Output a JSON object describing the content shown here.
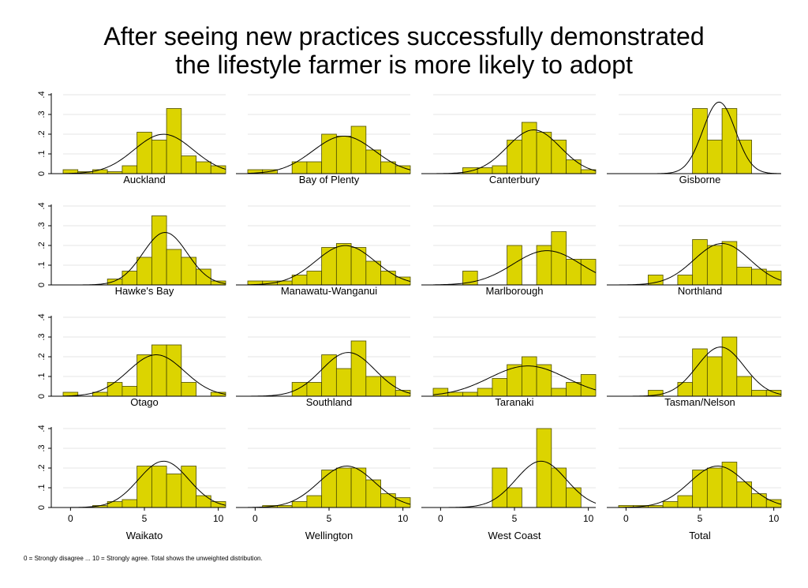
{
  "title_lines": [
    "After seeing new practices successfully demonstrated",
    "the lifestyle farmer is more likely to adopt"
  ],
  "note": "0 = Strongly disagree ... 10 = Strongly agree. Total shows the unweighted distribution.",
  "colors": {
    "bar_fill": "#dcd400",
    "bar_stroke": "#4a4a00",
    "axis": "#000000",
    "grid": "#e6e6e6",
    "curve": "#000000"
  },
  "chart_data": {
    "type": "bar",
    "overlay": "normal density curve",
    "grid": true,
    "xlim": [
      -0.5,
      10.5
    ],
    "ylim": [
      0,
      0.4
    ],
    "x_ticks": [
      0,
      5,
      10
    ],
    "x_tick_labels": [
      "0",
      "5",
      "10"
    ],
    "y_ticks": [
      0,
      0.1,
      0.2,
      0.3,
      0.4
    ],
    "y_tick_labels": [
      "0",
      ".1",
      ".2",
      ".3",
      ".4"
    ],
    "categories": [
      0,
      1,
      2,
      3,
      4,
      5,
      6,
      7,
      8,
      9,
      10
    ],
    "panels": [
      {
        "name": "Auckland",
        "values": [
          0.02,
          0.01,
          0.02,
          0.01,
          0.04,
          0.21,
          0.17,
          0.33,
          0.09,
          0.06,
          0.04
        ],
        "mean": 6.3,
        "sd": 2.0
      },
      {
        "name": "Bay of Plenty",
        "values": [
          0.02,
          0.02,
          0.0,
          0.06,
          0.06,
          0.2,
          0.19,
          0.24,
          0.12,
          0.06,
          0.04
        ],
        "mean": 6.0,
        "sd": 2.1
      },
      {
        "name": "Canterbury",
        "values": [
          0.0,
          0.0,
          0.03,
          0.03,
          0.04,
          0.17,
          0.26,
          0.21,
          0.17,
          0.07,
          0.02
        ],
        "mean": 6.3,
        "sd": 1.8
      },
      {
        "name": "Gisborne",
        "values": [
          0.0,
          0.0,
          0.0,
          0.0,
          0.0,
          0.33,
          0.17,
          0.33,
          0.17,
          0.0,
          0.0
        ],
        "mean": 6.3,
        "sd": 1.1
      },
      {
        "name": "Hawke's Bay",
        "values": [
          0.0,
          0.0,
          0.0,
          0.03,
          0.07,
          0.14,
          0.35,
          0.18,
          0.14,
          0.08,
          0.02
        ],
        "mean": 6.4,
        "sd": 1.5
      },
      {
        "name": "Manawatu-Wanganui",
        "values": [
          0.02,
          0.02,
          0.02,
          0.05,
          0.07,
          0.19,
          0.21,
          0.19,
          0.12,
          0.07,
          0.04
        ],
        "mean": 6.1,
        "sd": 2.0
      },
      {
        "name": "Marlborough",
        "values": [
          0.0,
          0.0,
          0.07,
          0.0,
          0.0,
          0.2,
          0.0,
          0.2,
          0.27,
          0.13,
          0.13
        ],
        "mean": 7.2,
        "sd": 2.3
      },
      {
        "name": "Northland",
        "values": [
          0.0,
          0.0,
          0.05,
          0.0,
          0.05,
          0.23,
          0.2,
          0.22,
          0.09,
          0.08,
          0.07
        ],
        "mean": 6.5,
        "sd": 1.9
      },
      {
        "name": "Otago",
        "values": [
          0.02,
          0.0,
          0.02,
          0.07,
          0.05,
          0.21,
          0.26,
          0.26,
          0.07,
          0.0,
          0.02
        ],
        "mean": 5.8,
        "sd": 1.9
      },
      {
        "name": "Southland",
        "values": [
          0.0,
          0.0,
          0.0,
          0.07,
          0.07,
          0.21,
          0.14,
          0.28,
          0.1,
          0.1,
          0.03
        ],
        "mean": 6.3,
        "sd": 1.8
      },
      {
        "name": "Taranaki",
        "values": [
          0.04,
          0.02,
          0.02,
          0.04,
          0.09,
          0.16,
          0.2,
          0.16,
          0.04,
          0.07,
          0.11
        ],
        "mean": 5.9,
        "sd": 2.6
      },
      {
        "name": "Tasman/Nelson",
        "values": [
          0.0,
          0.0,
          0.03,
          0.0,
          0.07,
          0.24,
          0.2,
          0.3,
          0.1,
          0.03,
          0.03
        ],
        "mean": 6.4,
        "sd": 1.6
      },
      {
        "name": "Waikato",
        "values": [
          0.0,
          0.0,
          0.01,
          0.03,
          0.04,
          0.21,
          0.21,
          0.17,
          0.21,
          0.06,
          0.03
        ],
        "mean": 6.3,
        "sd": 1.7
      },
      {
        "name": "Wellington",
        "values": [
          0.0,
          0.01,
          0.01,
          0.03,
          0.06,
          0.19,
          0.2,
          0.2,
          0.14,
          0.07,
          0.05
        ],
        "mean": 6.2,
        "sd": 1.9
      },
      {
        "name": "West Coast",
        "values": [
          0.0,
          0.0,
          0.0,
          0.0,
          0.2,
          0.1,
          0.0,
          0.4,
          0.2,
          0.1,
          0.0
        ],
        "mean": 6.8,
        "sd": 1.7
      },
      {
        "name": "Total",
        "values": [
          0.01,
          0.01,
          0.01,
          0.03,
          0.06,
          0.19,
          0.2,
          0.23,
          0.13,
          0.07,
          0.04
        ],
        "mean": 6.2,
        "sd": 1.9
      }
    ]
  }
}
